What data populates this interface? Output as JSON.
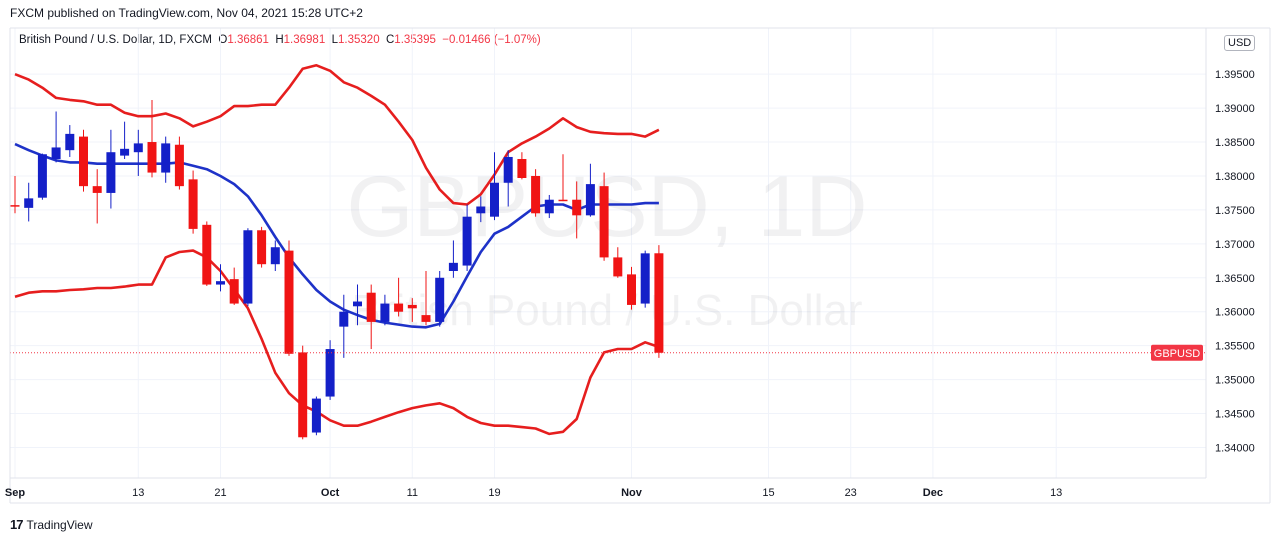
{
  "header": {
    "published": "FXCM published on TradingView.com, Nov 04, 2021 15:28 UTC+2"
  },
  "legend": {
    "symbol": "British Pound / U.S. Dollar, 1D, FXCM",
    "o_label": "O",
    "o": "1.36861",
    "h_label": "H",
    "h": "1.36981",
    "l_label": "L",
    "l": "1.35320",
    "c_label": "C",
    "c": "1.35395",
    "change": "−0.01466 (−1.07%)"
  },
  "watermark": {
    "line1": "GBPUSD, 1D",
    "line2": "British Pound / U.S. Dollar"
  },
  "currency_button": "USD",
  "price_tag": {
    "label": "GBPUSD",
    "value": 1.35395
  },
  "footer": {
    "brand": "TradingView",
    "logo": "17"
  },
  "colors": {
    "up": "#1420c8",
    "down": "#f01414",
    "bb_outer": "#e61e1e",
    "bb_mid": "#1e32c8",
    "grid": "#f0f3fa"
  },
  "chart_data": {
    "type": "candlestick",
    "title": "British Pound / U.S. Dollar, 1D, FXCM",
    "ylim": [
      1.3355,
      1.4018
    ],
    "y_ticks": [
      "1.34000",
      "1.34500",
      "1.35000",
      "1.35500",
      "1.36000",
      "1.36500",
      "1.37000",
      "1.37500",
      "1.38000",
      "1.38500",
      "1.39000",
      "1.39500"
    ],
    "x_tick_labels": [
      {
        "label": "Sep",
        "index": 0,
        "bold": true
      },
      {
        "label": "13",
        "index": 9
      },
      {
        "label": "21",
        "index": 15
      },
      {
        "label": "Oct",
        "index": 23,
        "bold": true
      },
      {
        "label": "11",
        "index": 29
      },
      {
        "label": "19",
        "index": 35
      },
      {
        "label": "Nov",
        "index": 45,
        "bold": true
      },
      {
        "label": "15",
        "index": 55
      },
      {
        "label": "23",
        "index": 61
      },
      {
        "label": "Dec",
        "index": 67,
        "bold": true
      },
      {
        "label": "13",
        "index": 76
      }
    ],
    "axis_end_index": 82,
    "candles": [
      {
        "o": 1.3757,
        "h": 1.38,
        "l": 1.3745,
        "c": 1.3755
      },
      {
        "o": 1.3753,
        "h": 1.379,
        "l": 1.3733,
        "c": 1.3767
      },
      {
        "o": 1.3768,
        "h": 1.3833,
        "l": 1.3765,
        "c": 1.3832
      },
      {
        "o": 1.3825,
        "h": 1.3895,
        "l": 1.382,
        "c": 1.3842
      },
      {
        "o": 1.3838,
        "h": 1.3875,
        "l": 1.3828,
        "c": 1.3862
      },
      {
        "o": 1.3858,
        "h": 1.3868,
        "l": 1.3777,
        "c": 1.3785
      },
      {
        "o": 1.3785,
        "h": 1.381,
        "l": 1.373,
        "c": 1.3775
      },
      {
        "o": 1.3775,
        "h": 1.3868,
        "l": 1.3752,
        "c": 1.3835
      },
      {
        "o": 1.383,
        "h": 1.388,
        "l": 1.3825,
        "c": 1.384
      },
      {
        "o": 1.3835,
        "h": 1.3868,
        "l": 1.38,
        "c": 1.3848
      },
      {
        "o": 1.385,
        "h": 1.3912,
        "l": 1.3798,
        "c": 1.3805
      },
      {
        "o": 1.3805,
        "h": 1.3858,
        "l": 1.379,
        "c": 1.3848
      },
      {
        "o": 1.3846,
        "h": 1.3858,
        "l": 1.378,
        "c": 1.3785
      },
      {
        "o": 1.3795,
        "h": 1.3808,
        "l": 1.3715,
        "c": 1.3722
      },
      {
        "o": 1.3728,
        "h": 1.3733,
        "l": 1.3638,
        "c": 1.364
      },
      {
        "o": 1.364,
        "h": 1.367,
        "l": 1.363,
        "c": 1.3645
      },
      {
        "o": 1.3648,
        "h": 1.3665,
        "l": 1.361,
        "c": 1.3612
      },
      {
        "o": 1.3612,
        "h": 1.3723,
        "l": 1.3608,
        "c": 1.372
      },
      {
        "o": 1.372,
        "h": 1.3725,
        "l": 1.3665,
        "c": 1.367
      },
      {
        "o": 1.367,
        "h": 1.3705,
        "l": 1.366,
        "c": 1.3695
      },
      {
        "o": 1.369,
        "h": 1.3705,
        "l": 1.3535,
        "c": 1.3538
      },
      {
        "o": 1.354,
        "h": 1.355,
        "l": 1.3412,
        "c": 1.3415
      },
      {
        "o": 1.3422,
        "h": 1.3475,
        "l": 1.3418,
        "c": 1.3472
      },
      {
        "o": 1.3475,
        "h": 1.3558,
        "l": 1.347,
        "c": 1.3545
      },
      {
        "o": 1.3578,
        "h": 1.3625,
        "l": 1.3532,
        "c": 1.36
      },
      {
        "o": 1.3608,
        "h": 1.364,
        "l": 1.358,
        "c": 1.3615
      },
      {
        "o": 1.3628,
        "h": 1.364,
        "l": 1.3545,
        "c": 1.3585
      },
      {
        "o": 1.3585,
        "h": 1.3625,
        "l": 1.358,
        "c": 1.3612
      },
      {
        "o": 1.3612,
        "h": 1.365,
        "l": 1.3593,
        "c": 1.36
      },
      {
        "o": 1.361,
        "h": 1.362,
        "l": 1.3585,
        "c": 1.3605
      },
      {
        "o": 1.3595,
        "h": 1.366,
        "l": 1.358,
        "c": 1.3585
      },
      {
        "o": 1.3585,
        "h": 1.366,
        "l": 1.3578,
        "c": 1.365
      },
      {
        "o": 1.366,
        "h": 1.3705,
        "l": 1.365,
        "c": 1.3672
      },
      {
        "o": 1.3668,
        "h": 1.3758,
        "l": 1.366,
        "c": 1.374
      },
      {
        "o": 1.3745,
        "h": 1.377,
        "l": 1.3732,
        "c": 1.3755
      },
      {
        "o": 1.374,
        "h": 1.3835,
        "l": 1.3735,
        "c": 1.379
      },
      {
        "o": 1.379,
        "h": 1.3838,
        "l": 1.3755,
        "c": 1.3828
      },
      {
        "o": 1.3825,
        "h": 1.3835,
        "l": 1.3795,
        "c": 1.3797
      },
      {
        "o": 1.38,
        "h": 1.381,
        "l": 1.374,
        "c": 1.3745
      },
      {
        "o": 1.3745,
        "h": 1.3772,
        "l": 1.3738,
        "c": 1.3765
      },
      {
        "o": 1.3765,
        "h": 1.3832,
        "l": 1.3763,
        "c": 1.3763
      },
      {
        "o": 1.3765,
        "h": 1.3792,
        "l": 1.3708,
        "c": 1.3742
      },
      {
        "o": 1.3742,
        "h": 1.3818,
        "l": 1.374,
        "c": 1.3788
      },
      {
        "o": 1.3785,
        "h": 1.3805,
        "l": 1.3675,
        "c": 1.368
      },
      {
        "o": 1.368,
        "h": 1.3695,
        "l": 1.365,
        "c": 1.3652
      },
      {
        "o": 1.3655,
        "h": 1.3666,
        "l": 1.3603,
        "c": 1.361
      },
      {
        "o": 1.3612,
        "h": 1.369,
        "l": 1.3606,
        "c": 1.3686
      },
      {
        "o": 1.36861,
        "h": 1.36981,
        "l": 1.3532,
        "c": 1.35395
      }
    ],
    "series": [
      {
        "name": "BB upper",
        "values": [
          1.395,
          1.3942,
          1.393,
          1.3915,
          1.3912,
          1.391,
          1.3905,
          1.3905,
          1.3893,
          1.3888,
          1.3888,
          1.3892,
          1.3885,
          1.3873,
          1.388,
          1.3888,
          1.3903,
          1.3903,
          1.3905,
          1.3905,
          1.393,
          1.3958,
          1.3963,
          1.3955,
          1.3938,
          1.393,
          1.3918,
          1.3905,
          1.388,
          1.3853,
          1.3812,
          1.378,
          1.376,
          1.3758,
          1.3773,
          1.3802,
          1.3835,
          1.3848,
          1.3858,
          1.387,
          1.3885,
          1.3872,
          1.3865,
          1.3863,
          1.3862,
          1.3862,
          1.3858,
          1.3868
        ]
      },
      {
        "name": "BB basis",
        "values": [
          1.3847,
          1.3838,
          1.383,
          1.3823,
          1.382,
          1.382,
          1.3818,
          1.3818,
          1.3818,
          1.3818,
          1.3818,
          1.3818,
          1.382,
          1.3815,
          1.381,
          1.38,
          1.3788,
          1.377,
          1.3742,
          1.371,
          1.368,
          1.3655,
          1.3632,
          1.3615,
          1.3603,
          1.3595,
          1.3588,
          1.3584,
          1.3581,
          1.3578,
          1.3577,
          1.3582,
          1.3615,
          1.3652,
          1.3688,
          1.3715,
          1.3725,
          1.374,
          1.3755,
          1.3758,
          1.3758,
          1.375,
          1.3758,
          1.3758,
          1.3758,
          1.3758,
          1.376,
          1.376
        ]
      },
      {
        "name": "BB lower",
        "values": [
          1.3622,
          1.3628,
          1.363,
          1.363,
          1.3632,
          1.3633,
          1.3635,
          1.3635,
          1.3637,
          1.364,
          1.364,
          1.368,
          1.3688,
          1.369,
          1.368,
          1.366,
          1.3633,
          1.3605,
          1.356,
          1.351,
          1.348,
          1.3462,
          1.3453,
          1.344,
          1.3432,
          1.3432,
          1.3438,
          1.3445,
          1.3452,
          1.3458,
          1.3462,
          1.3465,
          1.3458,
          1.3445,
          1.3436,
          1.3432,
          1.3432,
          1.343,
          1.3428,
          1.342,
          1.3423,
          1.3442,
          1.3503,
          1.354,
          1.3545,
          1.3545,
          1.3555,
          1.3548
        ]
      }
    ]
  }
}
